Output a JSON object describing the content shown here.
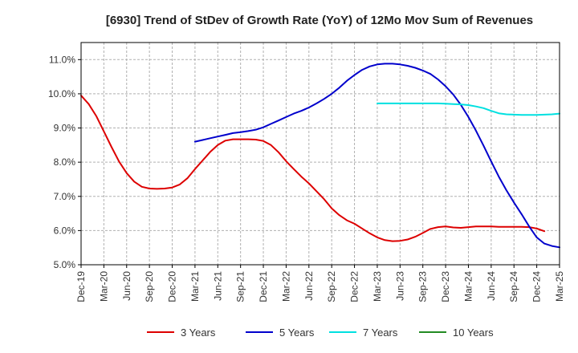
{
  "chart_data": {
    "type": "line",
    "title": "[6930]  Trend of StDev of Growth Rate (YoY) of 12Mo Mov Sum of Revenues",
    "xlabel": "",
    "ylabel": "",
    "ylim": [
      5.0,
      11.5
    ],
    "y_ticks": [
      5.0,
      6.0,
      7.0,
      8.0,
      9.0,
      10.0,
      11.0
    ],
    "y_tick_labels": [
      "5.0%",
      "6.0%",
      "7.0%",
      "8.0%",
      "9.0%",
      "10.0%",
      "11.0%"
    ],
    "x_tick_labels": [
      "Dec-19",
      "Mar-20",
      "Jun-20",
      "Sep-20",
      "Dec-20",
      "Mar-21",
      "Jun-21",
      "Sep-21",
      "Dec-21",
      "Mar-22",
      "Jun-22",
      "Sep-22",
      "Dec-22",
      "Mar-23",
      "Jun-23",
      "Sep-23",
      "Dec-23",
      "Mar-24",
      "Jun-24",
      "Sep-24",
      "Dec-24",
      "Mar-25"
    ],
    "grid": true,
    "legend_position": "bottom",
    "series": [
      {
        "name": "3 Years",
        "color": "#dd0000",
        "start_month": 0,
        "values": [
          9.95,
          9.7,
          9.35,
          8.9,
          8.45,
          8.02,
          7.68,
          7.43,
          7.28,
          7.23,
          7.22,
          7.23,
          7.26,
          7.35,
          7.53,
          7.8,
          8.05,
          8.3,
          8.5,
          8.63,
          8.67,
          8.67,
          8.67,
          8.66,
          8.62,
          8.5,
          8.29,
          8.03,
          7.8,
          7.58,
          7.38,
          7.15,
          6.92,
          6.65,
          6.45,
          6.3,
          6.2,
          6.06,
          5.92,
          5.8,
          5.72,
          5.69,
          5.7,
          5.74,
          5.82,
          5.93,
          6.05,
          6.1,
          6.12,
          6.09,
          6.08,
          6.1,
          6.12,
          6.12,
          6.12,
          6.11,
          6.11,
          6.11,
          6.11,
          6.1,
          6.06,
          5.98
        ]
      },
      {
        "name": "5 Years",
        "color": "#0000cc",
        "start_month": 15,
        "values": [
          8.6,
          8.65,
          8.7,
          8.75,
          8.8,
          8.85,
          8.88,
          8.91,
          8.95,
          9.02,
          9.12,
          9.22,
          9.32,
          9.42,
          9.5,
          9.6,
          9.72,
          9.85,
          10.0,
          10.18,
          10.38,
          10.55,
          10.7,
          10.8,
          10.86,
          10.88,
          10.88,
          10.86,
          10.82,
          10.76,
          10.68,
          10.58,
          10.42,
          10.22,
          9.98,
          9.68,
          9.32,
          8.92,
          8.48,
          8.02,
          7.58,
          7.18,
          6.82,
          6.48,
          6.12,
          5.8,
          5.62,
          5.55,
          5.51
        ]
      },
      {
        "name": "7 Years",
        "color": "#00e0e0",
        "start_month": 39,
        "values": [
          9.72,
          9.72,
          9.72,
          9.72,
          9.72,
          9.72,
          9.72,
          9.72,
          9.72,
          9.71,
          9.7,
          9.69,
          9.67,
          9.63,
          9.58,
          9.5,
          9.43,
          9.4,
          9.39,
          9.38,
          9.38,
          9.38,
          9.39,
          9.4,
          9.42
        ]
      },
      {
        "name": "10 Years",
        "color": "#228b22",
        "start_month": 0,
        "values": []
      }
    ]
  }
}
